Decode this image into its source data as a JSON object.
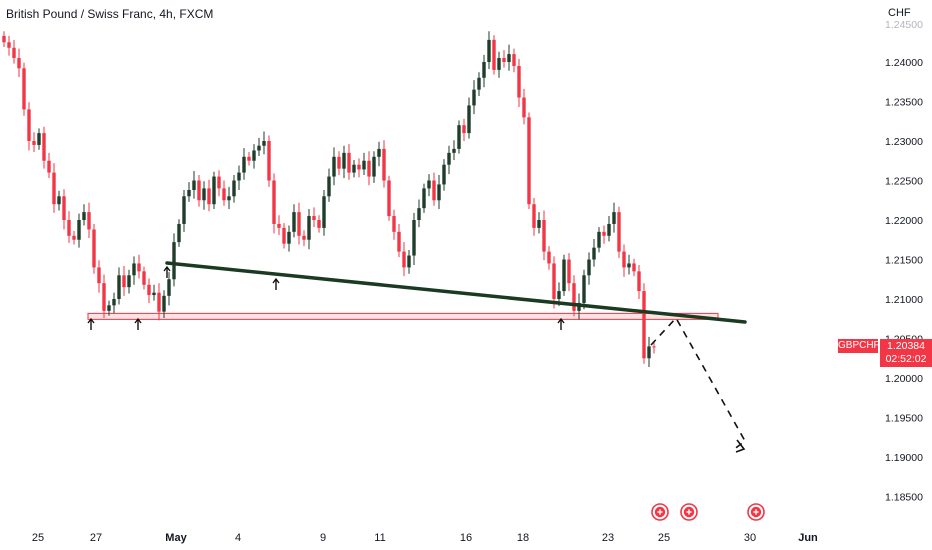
{
  "header": {
    "title": "British Pound / Swiss Franc, 4h, FXCM",
    "currency": "CHF"
  },
  "price_tag": {
    "symbol": "GBPCHF",
    "price": "1.20384",
    "countdown": "02:52:02"
  },
  "colors": {
    "up": "#1f3d2b",
    "down": "#f23645",
    "trendline": "#1a3a22",
    "zone_border": "#f23645",
    "zone_fill": "#fde2e4",
    "projection": "#111111",
    "event_icon": "#f23645"
  },
  "event_icons": [
    "event-flag-icon",
    "event-flag-icon",
    "event-flag-icon"
  ],
  "chart_data": {
    "type": "candlestick",
    "title": "British Pound / Swiss Franc, 4h, FXCM",
    "y_axis_unit": "CHF",
    "ylim": [
      1.183,
      1.2475
    ],
    "y_ticks": [
      1.24,
      1.235,
      1.23,
      1.225,
      1.22,
      1.215,
      1.21,
      1.205,
      1.2,
      1.195,
      1.19,
      1.185
    ],
    "y_tick_labels": [
      "1.24000",
      "1.23500",
      "1.23000",
      "1.22500",
      "1.22000",
      "1.21500",
      "1.21000",
      "1.20500",
      "1.20000",
      "1.19500",
      "1.19000",
      "1.18500"
    ],
    "x_tick_labels": [
      "25",
      "27",
      "May",
      "4",
      "9",
      "11",
      "16",
      "18",
      "23",
      "25",
      "30",
      "Jun"
    ],
    "grid": false,
    "anchors": [
      {
        "label": "May",
        "value": 1.2146
      },
      {
        "label": "4",
        "value": 1.2128
      }
    ],
    "support_level": 1.2078,
    "trendline": [
      {
        "date": "Apr 27",
        "value": 1.2146
      },
      {
        "date": "May 25",
        "value": 1.207
      }
    ],
    "last_price": 1.20384,
    "close_series": [
      1.2425,
      1.2418,
      1.2405,
      1.2392,
      1.234,
      1.23,
      1.2295,
      1.231,
      1.2275,
      1.226,
      1.222,
      1.223,
      1.22,
      1.218,
      1.2175,
      1.22,
      1.221,
      1.2188,
      1.214,
      1.212,
      1.2085,
      1.2092,
      1.21,
      1.213,
      1.2115,
      1.213,
      1.2145,
      1.2135,
      1.2118,
      1.2105,
      1.2108,
      1.2084,
      1.2104,
      1.2125,
      1.2172,
      1.2195,
      1.223,
      1.2238,
      1.225,
      1.2225,
      1.224,
      1.222,
      1.2255,
      1.224,
      1.2225,
      1.223,
      1.225,
      1.226,
      1.228,
      1.2275,
      1.2288,
      1.2294,
      1.23,
      1.225,
      1.2195,
      1.219,
      1.217,
      1.2185,
      1.221,
      1.218,
      1.2175,
      1.2205,
      1.22,
      1.219,
      1.223,
      1.2255,
      1.228,
      1.2265,
      1.2285,
      1.226,
      1.227,
      1.2264,
      1.2275,
      1.2255,
      1.228,
      1.229,
      1.225,
      1.2205,
      1.2185,
      1.216,
      1.214,
      1.2155,
      1.22,
      1.2215,
      1.224,
      1.225,
      1.2225,
      1.2245,
      1.227,
      1.2285,
      1.229,
      1.232,
      1.231,
      1.2345,
      1.2365,
      1.238,
      1.24,
      1.2428,
      1.239,
      1.2405,
      1.24,
      1.241,
      1.2395,
      1.2355,
      1.233,
      1.222,
      1.219,
      1.22,
      1.216,
      1.2145,
      1.21,
      1.211,
      1.215,
      1.212,
      1.2085,
      1.2095,
      1.213,
      1.215,
      1.2165,
      1.2185,
      1.218,
      1.2195,
      1.221,
      1.216,
      1.214,
      1.2145,
      1.2135,
      1.211,
      1.2025,
      1.204,
      1.2039
    ]
  }
}
